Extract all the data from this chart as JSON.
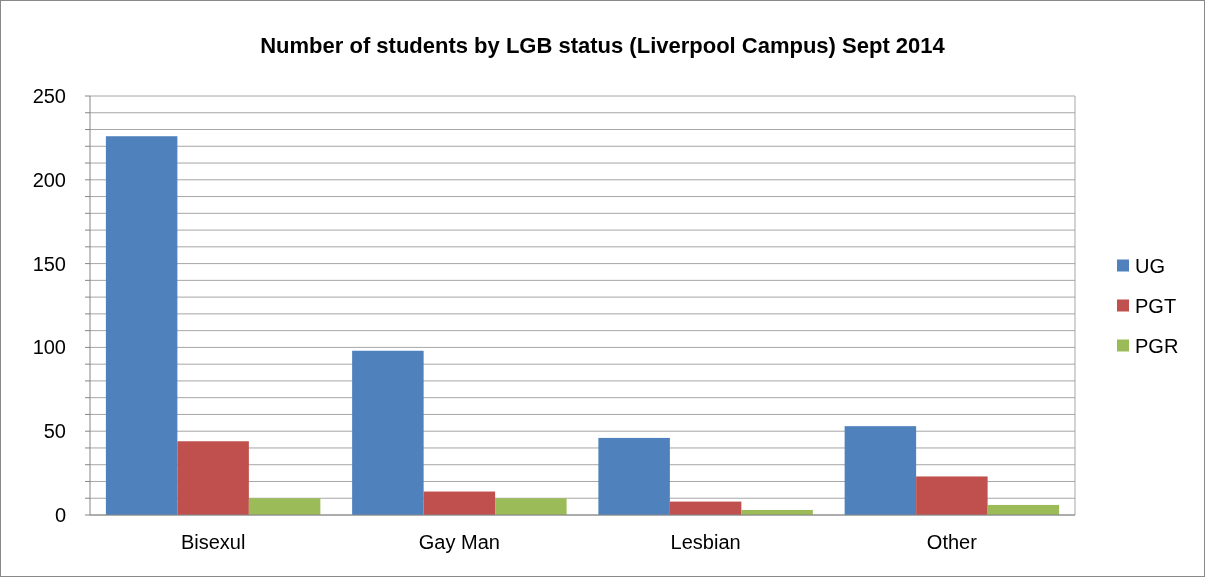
{
  "chart_data": {
    "type": "bar",
    "title": "Number of students by LGB status (Liverpool Campus) Sept 2014",
    "categories": [
      "Bisexul",
      "Gay Man",
      "Lesbian",
      "Other"
    ],
    "series": [
      {
        "name": "UG",
        "color": "#4f81bd",
        "values": [
          226,
          98,
          46,
          53
        ]
      },
      {
        "name": "PGT",
        "color": "#c0504d",
        "values": [
          44,
          14,
          8,
          23
        ]
      },
      {
        "name": "PGR",
        "color": "#9bbb59",
        "values": [
          10,
          10,
          3,
          6
        ]
      }
    ],
    "ylim": [
      0,
      250
    ],
    "yticks": [
      0,
      {
        "value": 10,
        "label": null
      },
      {
        "value": 20,
        "label": null
      },
      {
        "value": 30,
        "label": null
      },
      {
        "value": 40,
        "label": null
      },
      50,
      {
        "value": 60,
        "label": null
      },
      {
        "value": 70,
        "label": null
      },
      {
        "value": 80,
        "label": null
      },
      {
        "value": 90,
        "label": null
      },
      100,
      {
        "value": 110,
        "label": null
      },
      {
        "value": 120,
        "label": null
      },
      {
        "value": 130,
        "label": null
      },
      {
        "value": 140,
        "label": null
      },
      150,
      {
        "value": 160,
        "label": null
      },
      {
        "value": 170,
        "label": null
      },
      {
        "value": 180,
        "label": null
      },
      {
        "value": 190,
        "label": null
      },
      200,
      {
        "value": 210,
        "label": null
      },
      {
        "value": 220,
        "label": null
      },
      {
        "value": 230,
        "label": null
      },
      {
        "value": 240,
        "label": null
      },
      250
    ],
    "grid": true,
    "legend": "right"
  }
}
